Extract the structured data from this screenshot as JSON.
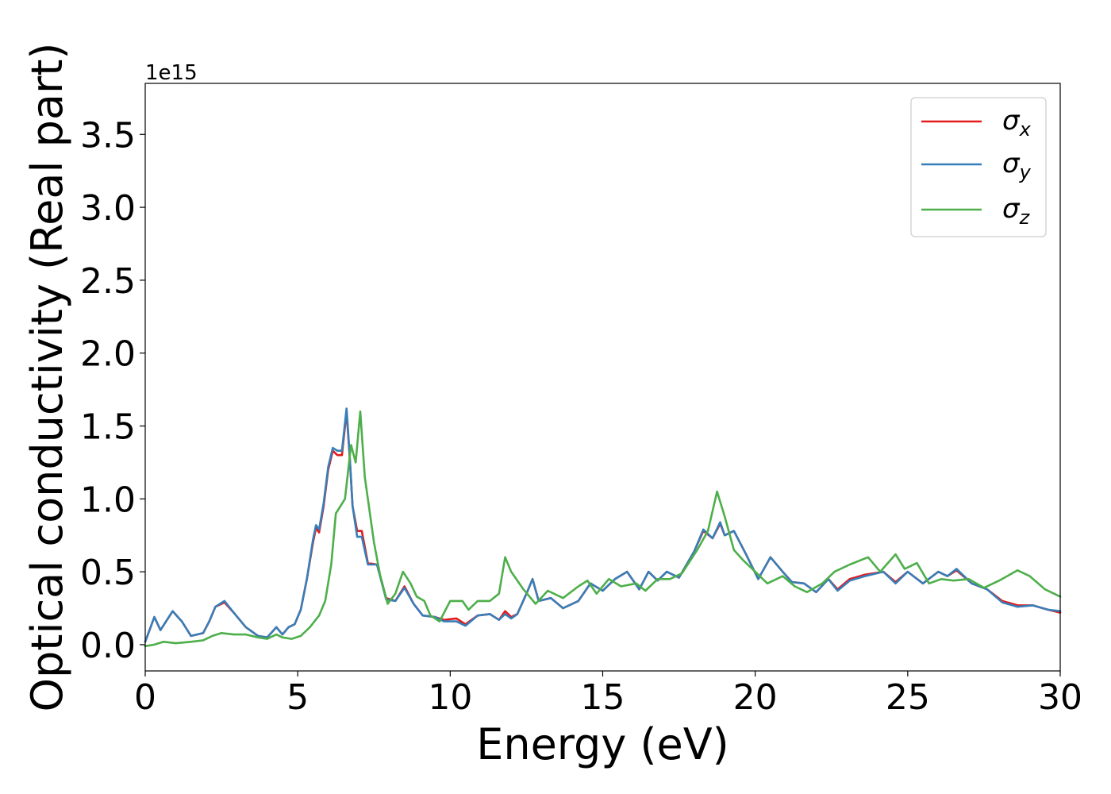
{
  "chart_data": {
    "type": "line",
    "xlabel": "Energy (eV)",
    "ylabel": "Optical conductivity (Real part)",
    "offset_text": "1e15",
    "xlim": [
      0,
      30
    ],
    "ylim": [
      -0.18,
      3.85
    ],
    "xticks": [
      0,
      5,
      10,
      15,
      20,
      25,
      30
    ],
    "xtick_labels": [
      "0",
      "5",
      "10",
      "15",
      "20",
      "25",
      "30"
    ],
    "yticks": [
      0.0,
      0.5,
      1.0,
      1.5,
      2.0,
      2.5,
      3.0,
      3.5
    ],
    "ytick_labels": [
      "0.0",
      "0.5",
      "1.0",
      "1.5",
      "2.0",
      "2.5",
      "3.0",
      "3.5"
    ],
    "grid": false,
    "legend_position": "top-right",
    "series": [
      {
        "name": "σx",
        "legend_base": "σ",
        "legend_sub": "x",
        "color": "#e41a1c",
        "points": [
          [
            0,
            0.02
          ],
          [
            0.3,
            0.19
          ],
          [
            0.5,
            0.1
          ],
          [
            0.9,
            0.23
          ],
          [
            1.2,
            0.16
          ],
          [
            1.5,
            0.06
          ],
          [
            1.9,
            0.08
          ],
          [
            2.1,
            0.16
          ],
          [
            2.3,
            0.26
          ],
          [
            2.6,
            0.29
          ],
          [
            2.9,
            0.22
          ],
          [
            3.3,
            0.12
          ],
          [
            3.7,
            0.06
          ],
          [
            4.0,
            0.05
          ],
          [
            4.3,
            0.12
          ],
          [
            4.5,
            0.07
          ],
          [
            4.7,
            0.12
          ],
          [
            4.9,
            0.14
          ],
          [
            5.1,
            0.24
          ],
          [
            5.3,
            0.45
          ],
          [
            5.5,
            0.7
          ],
          [
            5.6,
            0.8
          ],
          [
            5.7,
            0.77
          ],
          [
            5.85,
            0.95
          ],
          [
            6.0,
            1.2
          ],
          [
            6.15,
            1.33
          ],
          [
            6.3,
            1.3
          ],
          [
            6.45,
            1.3
          ],
          [
            6.6,
            1.6
          ],
          [
            6.7,
            1.3
          ],
          [
            6.8,
            0.95
          ],
          [
            6.95,
            0.78
          ],
          [
            7.1,
            0.78
          ],
          [
            7.3,
            0.56
          ],
          [
            7.6,
            0.55
          ],
          [
            7.9,
            0.32
          ],
          [
            8.2,
            0.3
          ],
          [
            8.5,
            0.4
          ],
          [
            8.8,
            0.28
          ],
          [
            9.1,
            0.2
          ],
          [
            9.5,
            0.19
          ],
          [
            9.8,
            0.17
          ],
          [
            10.2,
            0.18
          ],
          [
            10.5,
            0.14
          ],
          [
            10.9,
            0.2
          ],
          [
            11.3,
            0.21
          ],
          [
            11.6,
            0.17
          ],
          [
            11.8,
            0.23
          ],
          [
            12.0,
            0.19
          ],
          [
            12.2,
            0.21
          ],
          [
            12.5,
            0.35
          ],
          [
            12.7,
            0.45
          ],
          [
            12.9,
            0.3
          ],
          [
            13.3,
            0.32
          ],
          [
            13.7,
            0.25
          ],
          [
            14.2,
            0.3
          ],
          [
            14.6,
            0.42
          ],
          [
            15.0,
            0.37
          ],
          [
            15.4,
            0.45
          ],
          [
            15.8,
            0.5
          ],
          [
            16.2,
            0.38
          ],
          [
            16.5,
            0.5
          ],
          [
            16.8,
            0.44
          ],
          [
            17.1,
            0.5
          ],
          [
            17.5,
            0.46
          ],
          [
            18.0,
            0.64
          ],
          [
            18.3,
            0.78
          ],
          [
            18.6,
            0.73
          ],
          [
            18.85,
            0.83
          ],
          [
            19.0,
            0.75
          ],
          [
            19.3,
            0.78
          ],
          [
            19.7,
            0.62
          ],
          [
            20.1,
            0.45
          ],
          [
            20.5,
            0.6
          ],
          [
            20.9,
            0.5
          ],
          [
            21.2,
            0.43
          ],
          [
            21.6,
            0.42
          ],
          [
            22.0,
            0.36
          ],
          [
            22.4,
            0.45
          ],
          [
            22.7,
            0.38
          ],
          [
            23.1,
            0.45
          ],
          [
            23.6,
            0.48
          ],
          [
            24.2,
            0.5
          ],
          [
            24.6,
            0.43
          ],
          [
            25.0,
            0.5
          ],
          [
            25.5,
            0.42
          ],
          [
            26.0,
            0.5
          ],
          [
            26.3,
            0.47
          ],
          [
            26.6,
            0.51
          ],
          [
            27.1,
            0.42
          ],
          [
            27.6,
            0.38
          ],
          [
            28.1,
            0.3
          ],
          [
            28.6,
            0.27
          ],
          [
            29.1,
            0.27
          ],
          [
            29.6,
            0.24
          ],
          [
            30.0,
            0.22
          ]
        ]
      },
      {
        "name": "σy",
        "legend_base": "σ",
        "legend_sub": "y",
        "color": "#377eb8",
        "points": [
          [
            0,
            0.02
          ],
          [
            0.3,
            0.19
          ],
          [
            0.5,
            0.1
          ],
          [
            0.9,
            0.23
          ],
          [
            1.2,
            0.16
          ],
          [
            1.5,
            0.06
          ],
          [
            1.9,
            0.08
          ],
          [
            2.1,
            0.16
          ],
          [
            2.3,
            0.26
          ],
          [
            2.6,
            0.3
          ],
          [
            2.9,
            0.22
          ],
          [
            3.3,
            0.12
          ],
          [
            3.7,
            0.06
          ],
          [
            4.0,
            0.05
          ],
          [
            4.3,
            0.12
          ],
          [
            4.5,
            0.07
          ],
          [
            4.7,
            0.12
          ],
          [
            4.9,
            0.14
          ],
          [
            5.1,
            0.24
          ],
          [
            5.3,
            0.45
          ],
          [
            5.5,
            0.72
          ],
          [
            5.6,
            0.82
          ],
          [
            5.7,
            0.79
          ],
          [
            5.85,
            0.97
          ],
          [
            6.0,
            1.22
          ],
          [
            6.15,
            1.35
          ],
          [
            6.3,
            1.33
          ],
          [
            6.45,
            1.33
          ],
          [
            6.6,
            1.62
          ],
          [
            6.7,
            1.31
          ],
          [
            6.8,
            0.95
          ],
          [
            6.95,
            0.74
          ],
          [
            7.1,
            0.74
          ],
          [
            7.3,
            0.55
          ],
          [
            7.6,
            0.55
          ],
          [
            7.9,
            0.31
          ],
          [
            8.2,
            0.3
          ],
          [
            8.5,
            0.39
          ],
          [
            8.8,
            0.28
          ],
          [
            9.1,
            0.2
          ],
          [
            9.5,
            0.19
          ],
          [
            9.8,
            0.16
          ],
          [
            10.2,
            0.16
          ],
          [
            10.5,
            0.13
          ],
          [
            10.9,
            0.2
          ],
          [
            11.3,
            0.21
          ],
          [
            11.6,
            0.17
          ],
          [
            11.8,
            0.21
          ],
          [
            12.0,
            0.18
          ],
          [
            12.2,
            0.21
          ],
          [
            12.5,
            0.35
          ],
          [
            12.7,
            0.45
          ],
          [
            12.9,
            0.3
          ],
          [
            13.3,
            0.32
          ],
          [
            13.7,
            0.25
          ],
          [
            14.2,
            0.3
          ],
          [
            14.6,
            0.42
          ],
          [
            15.0,
            0.37
          ],
          [
            15.4,
            0.45
          ],
          [
            15.8,
            0.5
          ],
          [
            16.2,
            0.38
          ],
          [
            16.5,
            0.5
          ],
          [
            16.8,
            0.44
          ],
          [
            17.1,
            0.5
          ],
          [
            17.5,
            0.46
          ],
          [
            18.0,
            0.64
          ],
          [
            18.3,
            0.79
          ],
          [
            18.6,
            0.73
          ],
          [
            18.85,
            0.84
          ],
          [
            19.0,
            0.75
          ],
          [
            19.3,
            0.78
          ],
          [
            19.7,
            0.62
          ],
          [
            20.1,
            0.45
          ],
          [
            20.5,
            0.6
          ],
          [
            20.9,
            0.5
          ],
          [
            21.2,
            0.43
          ],
          [
            21.6,
            0.42
          ],
          [
            22.0,
            0.36
          ],
          [
            22.4,
            0.45
          ],
          [
            22.7,
            0.37
          ],
          [
            23.1,
            0.44
          ],
          [
            23.6,
            0.47
          ],
          [
            24.2,
            0.5
          ],
          [
            24.6,
            0.42
          ],
          [
            25.0,
            0.5
          ],
          [
            25.5,
            0.42
          ],
          [
            26.0,
            0.5
          ],
          [
            26.3,
            0.47
          ],
          [
            26.6,
            0.52
          ],
          [
            27.1,
            0.42
          ],
          [
            27.6,
            0.38
          ],
          [
            28.1,
            0.29
          ],
          [
            28.6,
            0.26
          ],
          [
            29.1,
            0.27
          ],
          [
            29.6,
            0.24
          ],
          [
            30.0,
            0.23
          ]
        ]
      },
      {
        "name": "σz",
        "legend_base": "σ",
        "legend_sub": "z",
        "color": "#4daf4a",
        "points": [
          [
            0,
            -0.01
          ],
          [
            0.3,
            0.0
          ],
          [
            0.6,
            0.02
          ],
          [
            1.0,
            0.01
          ],
          [
            1.5,
            0.02
          ],
          [
            1.9,
            0.03
          ],
          [
            2.2,
            0.06
          ],
          [
            2.5,
            0.08
          ],
          [
            2.9,
            0.07
          ],
          [
            3.3,
            0.07
          ],
          [
            3.7,
            0.05
          ],
          [
            4.0,
            0.04
          ],
          [
            4.3,
            0.07
          ],
          [
            4.5,
            0.05
          ],
          [
            4.8,
            0.04
          ],
          [
            5.1,
            0.06
          ],
          [
            5.4,
            0.12
          ],
          [
            5.7,
            0.2
          ],
          [
            5.9,
            0.3
          ],
          [
            6.1,
            0.55
          ],
          [
            6.25,
            0.9
          ],
          [
            6.4,
            0.95
          ],
          [
            6.55,
            1.0
          ],
          [
            6.75,
            1.37
          ],
          [
            6.9,
            1.25
          ],
          [
            7.05,
            1.6
          ],
          [
            7.2,
            1.15
          ],
          [
            7.5,
            0.7
          ],
          [
            7.7,
            0.48
          ],
          [
            7.95,
            0.28
          ],
          [
            8.2,
            0.35
          ],
          [
            8.45,
            0.5
          ],
          [
            8.7,
            0.42
          ],
          [
            8.9,
            0.33
          ],
          [
            9.15,
            0.3
          ],
          [
            9.35,
            0.2
          ],
          [
            9.65,
            0.16
          ],
          [
            10.0,
            0.3
          ],
          [
            10.4,
            0.3
          ],
          [
            10.6,
            0.24
          ],
          [
            10.9,
            0.3
          ],
          [
            11.3,
            0.3
          ],
          [
            11.6,
            0.35
          ],
          [
            11.8,
            0.6
          ],
          [
            12.0,
            0.5
          ],
          [
            12.4,
            0.38
          ],
          [
            12.8,
            0.28
          ],
          [
            13.2,
            0.37
          ],
          [
            13.7,
            0.32
          ],
          [
            14.2,
            0.4
          ],
          [
            14.5,
            0.44
          ],
          [
            14.8,
            0.35
          ],
          [
            15.2,
            0.45
          ],
          [
            15.6,
            0.4
          ],
          [
            16.1,
            0.42
          ],
          [
            16.4,
            0.37
          ],
          [
            16.8,
            0.45
          ],
          [
            17.2,
            0.45
          ],
          [
            17.6,
            0.49
          ],
          [
            18.1,
            0.65
          ],
          [
            18.45,
            0.78
          ],
          [
            18.75,
            1.05
          ],
          [
            19.0,
            0.88
          ],
          [
            19.3,
            0.65
          ],
          [
            19.6,
            0.58
          ],
          [
            20.0,
            0.5
          ],
          [
            20.4,
            0.42
          ],
          [
            20.9,
            0.47
          ],
          [
            21.3,
            0.4
          ],
          [
            21.7,
            0.36
          ],
          [
            22.2,
            0.42
          ],
          [
            22.6,
            0.5
          ],
          [
            23.1,
            0.55
          ],
          [
            23.7,
            0.6
          ],
          [
            24.1,
            0.5
          ],
          [
            24.6,
            0.62
          ],
          [
            24.9,
            0.52
          ],
          [
            25.3,
            0.56
          ],
          [
            25.7,
            0.42
          ],
          [
            26.1,
            0.45
          ],
          [
            26.5,
            0.44
          ],
          [
            27.0,
            0.45
          ],
          [
            27.5,
            0.39
          ],
          [
            28.0,
            0.44
          ],
          [
            28.6,
            0.51
          ],
          [
            29.0,
            0.47
          ],
          [
            29.5,
            0.38
          ],
          [
            30.0,
            0.33
          ]
        ]
      }
    ]
  }
}
